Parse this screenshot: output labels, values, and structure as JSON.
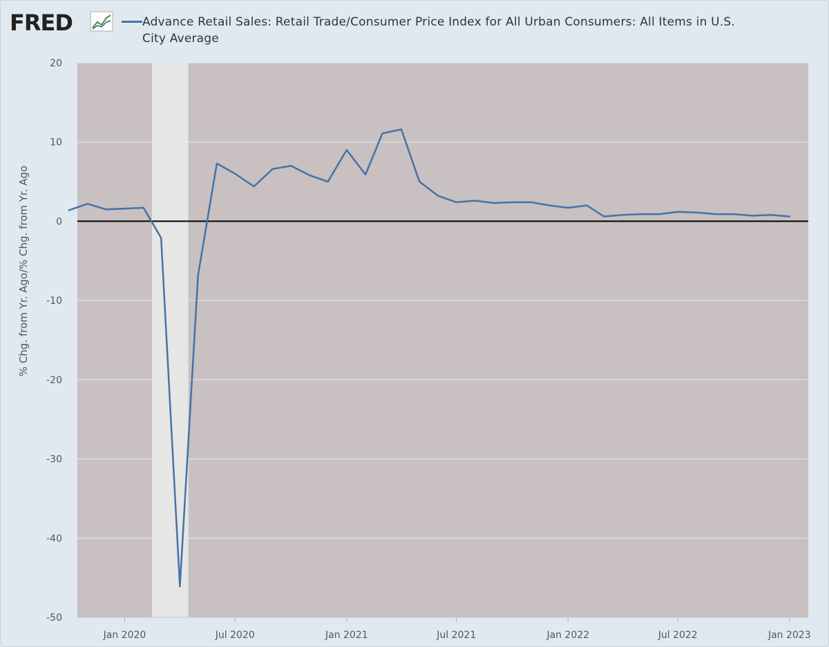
{
  "header": {
    "logo_text": "FRED",
    "logo_icon": "line-graph-icon",
    "series_title": "Advance Retail Sales: Retail Trade/Consumer Price Index for All Urban Consumers: All Items in U.S. City Average"
  },
  "colors": {
    "series": "#4572a7",
    "plot_bg": "#c8c0c1",
    "recession": "#e6e6e6",
    "page_bg": "#e1e9f0"
  },
  "chart_data": {
    "type": "line",
    "ylabel": "% Chg. from Yr. Ago/% Chg. from Yr. Ago",
    "xlabel": "",
    "ylim": [
      -50,
      20
    ],
    "yticks": [
      20,
      10,
      0,
      -10,
      -20,
      -30,
      -40,
      -50
    ],
    "xlim": [
      "2019-10-15",
      "2023-02-01"
    ],
    "xticks": [
      {
        "date": "2020-01-01",
        "label": "Jan 2020"
      },
      {
        "date": "2020-07-01",
        "label": "Jul 2020"
      },
      {
        "date": "2021-01-01",
        "label": "Jan 2021"
      },
      {
        "date": "2021-07-01",
        "label": "Jul 2021"
      },
      {
        "date": "2022-01-01",
        "label": "Jan 2022"
      },
      {
        "date": "2022-07-01",
        "label": "Jul 2022"
      },
      {
        "date": "2023-01-01",
        "label": "Jan 2023"
      }
    ],
    "grid": true,
    "zero_line": true,
    "recession": {
      "start": "2020-02-15",
      "end": "2020-04-15"
    },
    "series": [
      {
        "x": [
          "2019-10-01",
          "2019-11-01",
          "2019-12-01",
          "2020-01-01",
          "2020-02-01",
          "2020-03-01",
          "2020-04-01",
          "2020-05-01",
          "2020-06-01",
          "2020-07-01",
          "2020-08-01",
          "2020-09-01",
          "2020-10-01",
          "2020-11-01",
          "2020-12-01",
          "2021-01-01",
          "2021-02-01",
          "2021-03-01",
          "2021-04-01",
          "2021-05-01",
          "2021-06-01",
          "2021-07-01",
          "2021-08-01",
          "2021-09-01",
          "2021-10-01",
          "2021-11-01",
          "2021-12-01",
          "2022-01-01",
          "2022-02-01",
          "2022-03-01",
          "2022-04-01",
          "2022-05-01",
          "2022-06-01",
          "2022-07-01",
          "2022-08-01",
          "2022-09-01",
          "2022-10-01",
          "2022-11-01",
          "2022-12-01",
          "2023-01-01"
        ],
        "values": [
          1.4,
          2.2,
          1.5,
          1.6,
          1.7,
          -2.1,
          -46.1,
          -6.8,
          7.3,
          6.0,
          4.4,
          6.6,
          7.0,
          5.8,
          5.0,
          9.0,
          5.9,
          11.1,
          11.6,
          5.0,
          3.2,
          2.4,
          2.6,
          2.3,
          2.4,
          2.4,
          2.0,
          1.7,
          2.0,
          0.6,
          0.8,
          0.9,
          0.9,
          1.2,
          1.1,
          0.9,
          0.9,
          0.7,
          0.8,
          0.6
        ]
      }
    ]
  }
}
